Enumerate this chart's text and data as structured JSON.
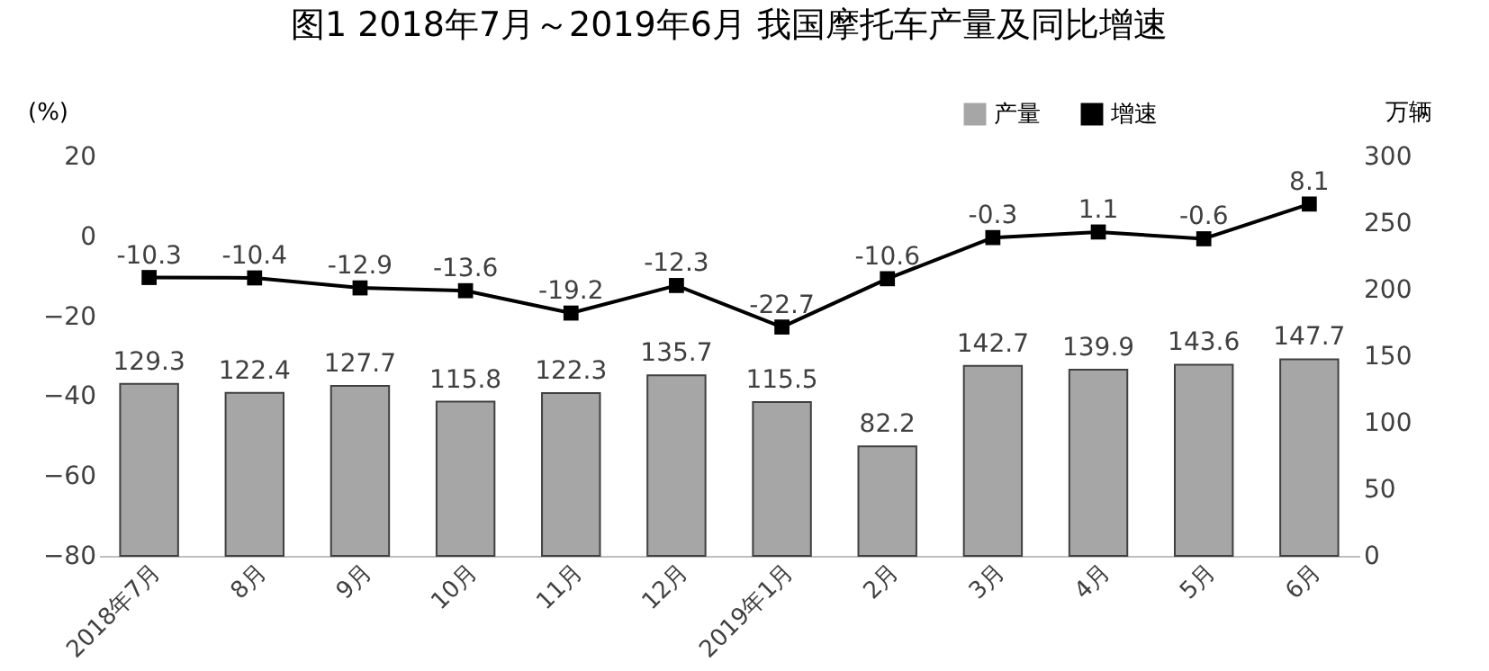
{
  "chart_data": {
    "type": "bar",
    "title": "图1  2018年7月～2019年6月 我国摩托车产量及同比增速",
    "ylabel": "(%)",
    "y2label": "万辆",
    "categories": [
      "2018年7月",
      "8月",
      "9月",
      "10月",
      "11月",
      "12月",
      "2019年1月",
      "2月",
      "3月",
      "4月",
      "5月",
      "6月"
    ],
    "series": [
      {
        "name": "产量",
        "axis": "y2",
        "color": "#a6a6a6",
        "values": [
          129.3,
          122.4,
          127.7,
          115.8,
          122.3,
          135.7,
          115.5,
          82.2,
          142.7,
          139.9,
          143.6,
          147.7
        ]
      },
      {
        "name": "增速",
        "type": "line",
        "axis": "y",
        "color": "#000000",
        "values": [
          -10.3,
          -10.4,
          -12.9,
          -13.6,
          -19.2,
          -12.3,
          -22.7,
          -10.6,
          -0.3,
          1.1,
          -0.6,
          8.1
        ]
      }
    ],
    "ylim": [
      -80,
      20
    ],
    "yticks": [
      -80,
      -60,
      -40,
      -20,
      0,
      20
    ],
    "y2lim": [
      0,
      300
    ],
    "y2ticks": [
      0,
      50,
      100,
      150,
      200,
      250,
      300
    ],
    "data_labels": true,
    "legend": "top right",
    "grid": false,
    "marker": "square",
    "line_style": "solid"
  }
}
